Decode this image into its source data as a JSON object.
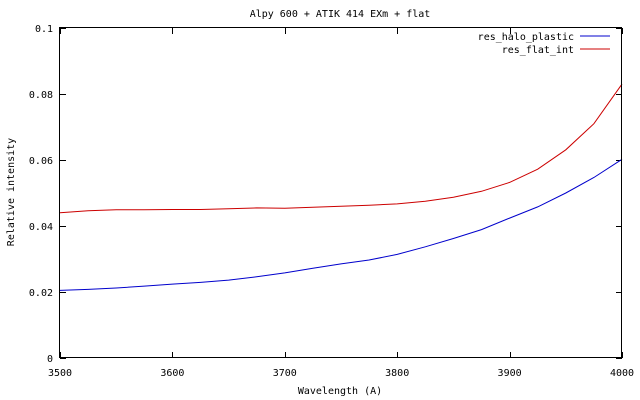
{
  "chart_data": {
    "type": "line",
    "title": "Alpy 600 + ATIK 414 EXm + flat",
    "xlabel": "Wavelength (A)",
    "ylabel": "Relative intensity",
    "xlim": [
      3500,
      4000
    ],
    "ylim": [
      0,
      0.1
    ],
    "xticks": [
      3500,
      3600,
      3700,
      3800,
      3900,
      4000
    ],
    "xtick_labels": [
      "3500",
      "3600",
      "3700",
      "3800",
      "3900",
      "4000"
    ],
    "yticks": [
      0,
      0.02,
      0.04,
      0.06,
      0.08,
      0.1
    ],
    "ytick_labels": [
      "0",
      "0.02",
      "0.04",
      "0.06",
      "0.08",
      "0.1"
    ],
    "grid": false,
    "legend_position": "top-right",
    "series": [
      {
        "name": "res_halo_plastic",
        "color": "#0000cc",
        "x": [
          3500,
          3525,
          3550,
          3575,
          3600,
          3625,
          3650,
          3675,
          3700,
          3725,
          3750,
          3775,
          3800,
          3825,
          3850,
          3875,
          3900,
          3925,
          3950,
          3975,
          4000
        ],
        "y": [
          0.0205,
          0.0208,
          0.0212,
          0.0218,
          0.0224,
          0.0229,
          0.0236,
          0.0246,
          0.0258,
          0.0272,
          0.0285,
          0.0297,
          0.0314,
          0.0337,
          0.0362,
          0.0389,
          0.0424,
          0.0458,
          0.05,
          0.0547,
          0.0602
        ]
      },
      {
        "name": "res_flat_int",
        "color": "#cc0000",
        "x": [
          3500,
          3525,
          3550,
          3575,
          3600,
          3625,
          3650,
          3675,
          3700,
          3725,
          3750,
          3775,
          3800,
          3825,
          3850,
          3875,
          3900,
          3925,
          3950,
          3975,
          4000
        ],
        "y": [
          0.044,
          0.0446,
          0.0449,
          0.0449,
          0.045,
          0.045,
          0.0452,
          0.0455,
          0.0454,
          0.0457,
          0.046,
          0.0463,
          0.0467,
          0.0475,
          0.0487,
          0.0505,
          0.0532,
          0.0572,
          0.0631,
          0.071,
          0.083
        ]
      }
    ]
  }
}
